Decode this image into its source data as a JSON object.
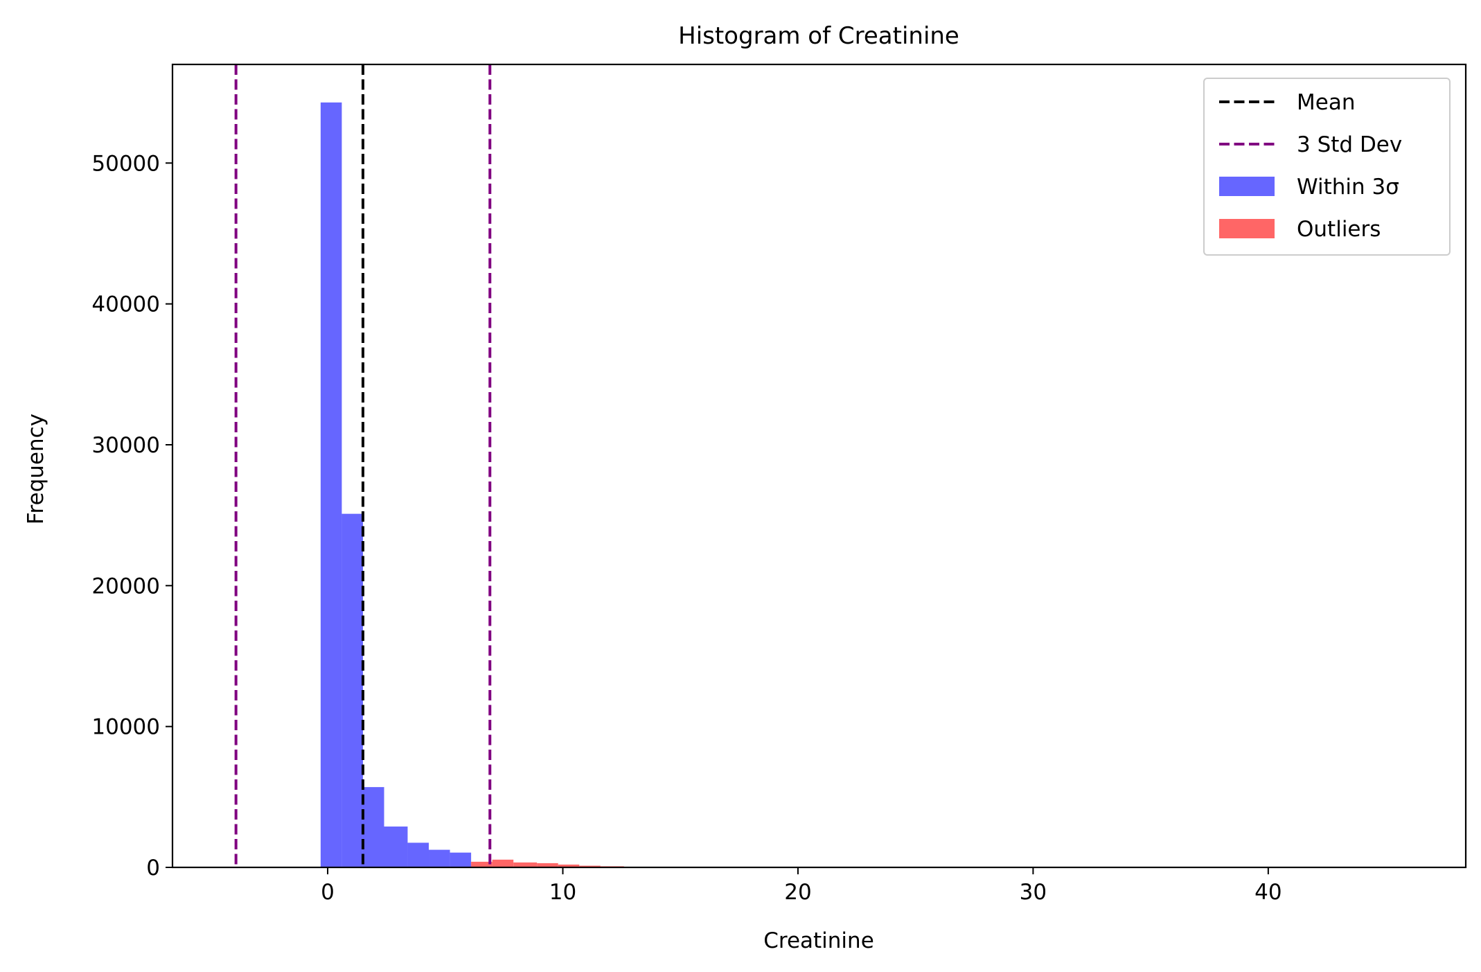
{
  "chart_data": {
    "type": "bar",
    "title": "Histogram of Creatinine",
    "xlabel": "Creatinine",
    "ylabel": "Frequency",
    "xlim": [
      -6.6,
      48.4
    ],
    "ylim": [
      0,
      57000
    ],
    "xticks": [
      0,
      10,
      20,
      30,
      40
    ],
    "yticks": [
      0,
      10000,
      20000,
      30000,
      40000,
      50000
    ],
    "grid": false,
    "legend_position": "top-right",
    "lines": [
      {
        "name": "Mean",
        "x": 1.5,
        "color": "#000000",
        "dash": true
      },
      {
        "name": "3 Std Dev",
        "x": -3.9,
        "color": "#800080",
        "dash": true
      },
      {
        "name": "3 Std Dev",
        "x": 6.9,
        "color": "#800080",
        "dash": true
      }
    ],
    "series": [
      {
        "name": "Within 3σ",
        "color": "#6666ff",
        "bins": [
          {
            "x0": -0.3,
            "x1": 0.6,
            "y": 54300
          },
          {
            "x0": 0.6,
            "x1": 1.5,
            "y": 25100
          },
          {
            "x0": 1.5,
            "x1": 2.4,
            "y": 5700
          },
          {
            "x0": 2.4,
            "x1": 3.4,
            "y": 2900
          },
          {
            "x0": 3.4,
            "x1": 4.3,
            "y": 1750
          },
          {
            "x0": 4.3,
            "x1": 5.2,
            "y": 1250
          },
          {
            "x0": 5.2,
            "x1": 6.1,
            "y": 1050
          },
          {
            "x0": 6.1,
            "x1": 7.0,
            "y": 200
          }
        ]
      },
      {
        "name": "Outliers",
        "color": "#ff6666",
        "bins": [
          {
            "x0": 6.1,
            "x1": 7.0,
            "y": 400
          },
          {
            "x0": 7.0,
            "x1": 7.9,
            "y": 550
          },
          {
            "x0": 7.9,
            "x1": 8.9,
            "y": 350
          },
          {
            "x0": 8.9,
            "x1": 9.8,
            "y": 300
          },
          {
            "x0": 9.8,
            "x1": 10.7,
            "y": 200
          },
          {
            "x0": 10.7,
            "x1": 11.6,
            "y": 120
          },
          {
            "x0": 11.6,
            "x1": 12.6,
            "y": 80
          },
          {
            "x0": 12.6,
            "x1": 13.5,
            "y": 40
          },
          {
            "x0": 13.5,
            "x1": 14.4,
            "y": 25
          },
          {
            "x0": 14.4,
            "x1": 15.3,
            "y": 15
          },
          {
            "x0": 15.3,
            "x1": 16.2,
            "y": 10
          }
        ]
      }
    ],
    "legend": [
      {
        "label": "Mean",
        "kind": "dash",
        "color": "#000000"
      },
      {
        "label": "3 Std Dev",
        "kind": "dash",
        "color": "#800080"
      },
      {
        "label": "Within 3σ",
        "kind": "patch",
        "color": "#6666ff"
      },
      {
        "label": "Outliers",
        "kind": "patch",
        "color": "#ff6666"
      }
    ]
  }
}
